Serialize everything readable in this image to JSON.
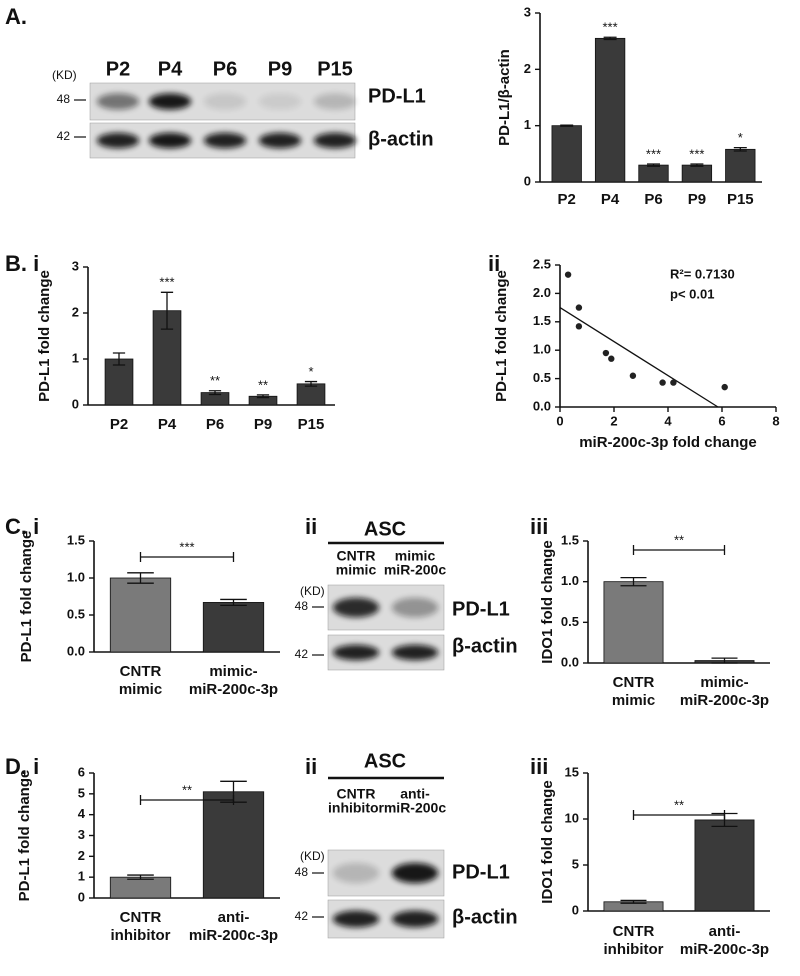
{
  "panel_labels": [
    "A.",
    "B. i",
    "ii",
    "C. i",
    "ii",
    "iii",
    "D. i",
    "ii",
    "iii"
  ],
  "blots": [
    {
      "kd": "(KD)",
      "markers": [
        "48",
        "42"
      ],
      "lanes": [
        "P2",
        "P4",
        "P6",
        "P9",
        "P15"
      ],
      "bands": [
        "PD-L1",
        "β-actin"
      ]
    },
    {
      "header": "ASC",
      "kd": "(KD)",
      "markers": [
        "48",
        "42"
      ],
      "lanes": [
        [
          "CNTR",
          "mimic"
        ],
        [
          "mimic",
          "miR-200c"
        ]
      ],
      "bands": [
        "PD-L1",
        "β-actin"
      ]
    },
    {
      "header": "ASC",
      "kd": "(KD)",
      "markers": [
        "48",
        "42"
      ],
      "lanes": [
        [
          "CNTR",
          "inhibitor"
        ],
        [
          "anti-",
          "miR-200c"
        ]
      ],
      "bands": [
        "PD-L1",
        "β-actin"
      ]
    }
  ],
  "chart_data": [
    {
      "type": "bar",
      "ylabel": "PD-L1/β-actin",
      "categories": [
        "P2",
        "P4",
        "P6",
        "P9",
        "P15"
      ],
      "values": [
        1.0,
        2.55,
        0.3,
        0.3,
        0.58
      ],
      "errors": [
        0.01,
        0.02,
        0.02,
        0.02,
        0.03
      ],
      "value_annotations": [
        null,
        "***",
        "***",
        "***",
        "*"
      ],
      "color": "#3a3a3a",
      "ylim": [
        0,
        3
      ],
      "yticks": [
        0,
        1,
        2,
        3
      ]
    },
    {
      "type": "bar",
      "ylabel": "PD-L1 fold change",
      "categories": [
        "P2",
        "P4",
        "P6",
        "P9",
        "P15"
      ],
      "values": [
        1.0,
        2.05,
        0.27,
        0.19,
        0.46
      ],
      "errors": [
        0.13,
        0.4,
        0.04,
        0.03,
        0.05
      ],
      "value_annotations": [
        null,
        "***",
        "**",
        "**",
        "*"
      ],
      "color": "#3a3a3a",
      "ylim": [
        0,
        3
      ],
      "yticks": [
        0,
        1,
        2,
        3
      ]
    },
    {
      "type": "scatter",
      "ylabel": "PD-L1 fold change",
      "xlabel": "miR-200c-3p fold change",
      "x": [
        0.3,
        0.7,
        0.7,
        1.7,
        1.9,
        2.7,
        3.8,
        4.2,
        6.1
      ],
      "y": [
        2.33,
        1.75,
        1.42,
        0.95,
        0.85,
        0.55,
        0.43,
        0.43,
        0.35
      ],
      "color": "#222222",
      "trendline": {
        "x": [
          0,
          5.85
        ],
        "y": [
          1.75,
          0
        ]
      },
      "annotations": [
        "R²= 0.7130",
        "p< 0.01"
      ],
      "xlim": [
        0,
        8
      ],
      "xticks": [
        0,
        2,
        4,
        6,
        8
      ],
      "ylim": [
        0,
        2.5
      ],
      "yticks": [
        {
          "value": 0,
          "label": "0.0"
        },
        0.5,
        {
          "value": 1,
          "label": "1.0"
        },
        1.5,
        {
          "value": 2,
          "label": "2.0"
        },
        2.5
      ]
    },
    {
      "type": "bar",
      "ylabel": "PD-L1 fold change",
      "categories": [
        [
          "CNTR",
          "mimic"
        ],
        [
          "mimic-",
          "miR-200c-3p"
        ]
      ],
      "values": [
        1.0,
        0.67
      ],
      "errors": [
        0.07,
        0.04
      ],
      "colors": [
        "#7a7a7a",
        "#3a3a3a"
      ],
      "significance": "***",
      "ylim": [
        0,
        1.5
      ],
      "yticks": [
        {
          "value": 0,
          "label": "0.0"
        },
        0.5,
        {
          "value": 1,
          "label": "1.0"
        },
        1.5
      ]
    },
    {
      "type": "bar",
      "ylabel": "IDO1 fold change",
      "categories": [
        [
          "CNTR",
          "mimic"
        ],
        [
          "mimic-",
          "miR-200c-3p"
        ]
      ],
      "values": [
        1.0,
        0.03
      ],
      "errors": [
        0.05,
        0.03
      ],
      "colors": [
        "#7a7a7a",
        "#3a3a3a"
      ],
      "significance": "**",
      "ylim": [
        0,
        1.5
      ],
      "yticks": [
        {
          "value": 0,
          "label": "0.0"
        },
        0.5,
        {
          "value": 1,
          "label": "1.0"
        },
        1.5
      ]
    },
    {
      "type": "bar",
      "ylabel": "PD-L1 fold change",
      "categories": [
        [
          "CNTR",
          "inhibitor"
        ],
        [
          "anti-",
          "miR-200c-3p"
        ]
      ],
      "values": [
        1.0,
        5.1
      ],
      "errors": [
        0.1,
        0.5
      ],
      "colors": [
        "#7a7a7a",
        "#3a3a3a"
      ],
      "significance": "**",
      "ylim": [
        0,
        6
      ],
      "yticks": [
        0,
        1,
        2,
        3,
        4,
        5,
        6
      ]
    },
    {
      "type": "bar",
      "ylabel": "IDO1 fold change",
      "categories": [
        [
          "CNTR",
          "inhibitor"
        ],
        [
          "anti-",
          "miR-200c-3p"
        ]
      ],
      "values": [
        1.0,
        9.9
      ],
      "errors": [
        0.15,
        0.7
      ],
      "colors": [
        "#7a7a7a",
        "#3a3a3a"
      ],
      "significance": "**",
      "ylim": [
        0,
        15
      ],
      "yticks": [
        0,
        5,
        10,
        15
      ]
    }
  ]
}
